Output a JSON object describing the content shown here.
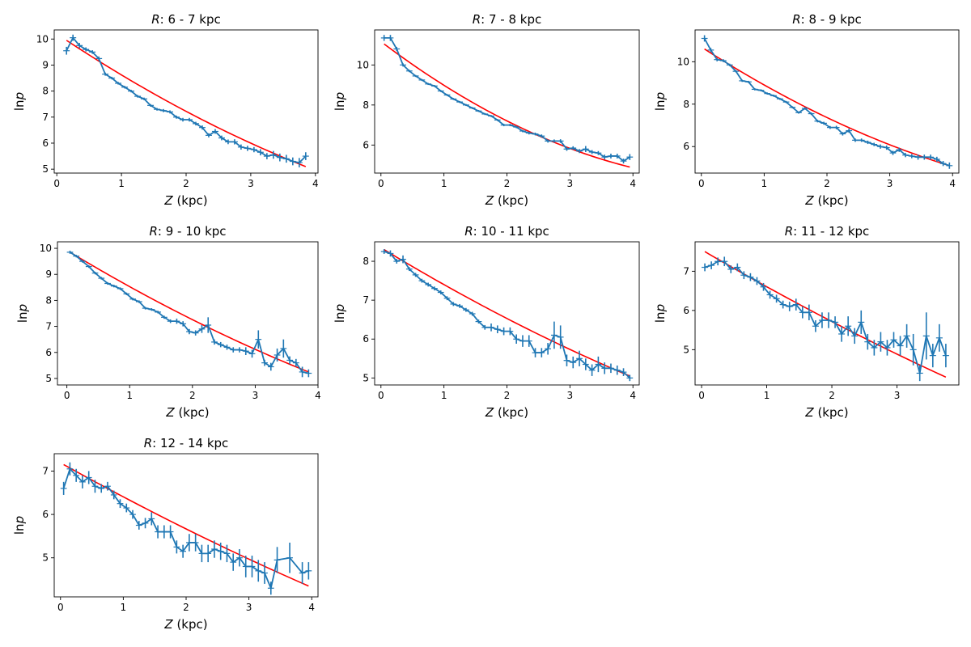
{
  "chart_data": [
    {
      "type": "line",
      "title_prefix": "R",
      "title_rest": ": 6 - 7 kpc",
      "xlabel_var": "Z",
      "xlabel_unit": " (kpc)",
      "ylabel_pre": "ln",
      "ylabel_var": "p",
      "xlim": [
        -0.04,
        4.04
      ],
      "ylim": [
        4.85,
        10.35
      ],
      "xticks": [
        0,
        1,
        2,
        3,
        4
      ],
      "yticks": [
        5,
        6,
        7,
        8,
        9,
        10
      ],
      "colors": {
        "data": "#1f77b4",
        "fit": "#ff0000"
      },
      "data": {
        "x": [
          0.15,
          0.25,
          0.35,
          0.45,
          0.55,
          0.65,
          0.75,
          0.85,
          0.95,
          1.05,
          1.15,
          1.25,
          1.35,
          1.45,
          1.55,
          1.65,
          1.75,
          1.85,
          1.95,
          2.05,
          2.15,
          2.25,
          2.35,
          2.45,
          2.55,
          2.65,
          2.75,
          2.85,
          2.95,
          3.05,
          3.15,
          3.25,
          3.35,
          3.45,
          3.55,
          3.65,
          3.75,
          3.85
        ],
        "y": [
          9.55,
          10.05,
          9.75,
          9.6,
          9.5,
          9.25,
          8.65,
          8.5,
          8.3,
          8.15,
          8.0,
          7.8,
          7.7,
          7.45,
          7.3,
          7.25,
          7.2,
          7.0,
          6.9,
          6.9,
          6.75,
          6.6,
          6.3,
          6.45,
          6.2,
          6.05,
          6.05,
          5.85,
          5.8,
          5.75,
          5.65,
          5.5,
          5.55,
          5.45,
          5.4,
          5.3,
          5.25,
          5.5
        ],
        "yerr": [
          0.15,
          0.12,
          0.1,
          0.08,
          0.07,
          0.08,
          0.06,
          0.05,
          0.05,
          0.05,
          0.05,
          0.05,
          0.05,
          0.05,
          0.05,
          0.06,
          0.06,
          0.06,
          0.07,
          0.07,
          0.07,
          0.08,
          0.08,
          0.09,
          0.09,
          0.09,
          0.1,
          0.1,
          0.1,
          0.1,
          0.12,
          0.12,
          0.15,
          0.15,
          0.15,
          0.15,
          0.18,
          0.15
        ]
      },
      "fit": {
        "x": [
          0.15,
          3.85
        ],
        "y": [
          9.95,
          5.1
        ],
        "curvature": 0.25
      }
    },
    {
      "type": "line",
      "title_prefix": "R",
      "title_rest": ": 7 - 8 kpc",
      "xlabel_var": "Z",
      "xlabel_unit": " (kpc)",
      "ylabel_pre": "ln",
      "ylabel_var": "p",
      "xlim": [
        -0.1,
        4.1
      ],
      "ylim": [
        4.6,
        11.75
      ],
      "xticks": [
        0,
        1,
        2,
        3,
        4
      ],
      "yticks": [
        6,
        8,
        10
      ],
      "colors": {
        "data": "#1f77b4",
        "fit": "#ff0000"
      },
      "data": {
        "x": [
          0.05,
          0.15,
          0.25,
          0.35,
          0.45,
          0.55,
          0.65,
          0.75,
          0.85,
          0.95,
          1.05,
          1.15,
          1.25,
          1.35,
          1.45,
          1.55,
          1.65,
          1.75,
          1.85,
          1.95,
          2.05,
          2.15,
          2.25,
          2.35,
          2.45,
          2.55,
          2.65,
          2.75,
          2.85,
          2.95,
          3.05,
          3.15,
          3.25,
          3.35,
          3.45,
          3.55,
          3.65,
          3.75,
          3.85,
          3.95
        ],
        "y": [
          11.35,
          11.35,
          10.8,
          10.0,
          9.7,
          9.45,
          9.25,
          9.05,
          8.95,
          8.7,
          8.5,
          8.3,
          8.15,
          8.0,
          7.85,
          7.7,
          7.55,
          7.45,
          7.25,
          7.0,
          7.0,
          6.9,
          6.7,
          6.6,
          6.55,
          6.45,
          6.2,
          6.2,
          6.2,
          5.8,
          5.85,
          5.7,
          5.8,
          5.65,
          5.6,
          5.4,
          5.45,
          5.45,
          5.2,
          5.4
        ],
        "yerr": [
          0.15,
          0.15,
          0.1,
          0.08,
          0.06,
          0.05,
          0.05,
          0.05,
          0.05,
          0.05,
          0.05,
          0.05,
          0.05,
          0.05,
          0.05,
          0.05,
          0.05,
          0.05,
          0.05,
          0.06,
          0.06,
          0.06,
          0.06,
          0.07,
          0.07,
          0.08,
          0.08,
          0.08,
          0.09,
          0.09,
          0.09,
          0.1,
          0.15,
          0.1,
          0.1,
          0.12,
          0.12,
          0.12,
          0.12,
          0.15
        ]
      },
      "fit": {
        "x": [
          0.05,
          3.95
        ],
        "y": [
          11.05,
          4.9
        ],
        "curvature": 0.5
      }
    },
    {
      "type": "line",
      "title_prefix": "R",
      "title_rest": ": 8 - 9 kpc",
      "xlabel_var": "Z",
      "xlabel_unit": " (kpc)",
      "ylabel_pre": "ln",
      "ylabel_var": "p",
      "xlim": [
        -0.1,
        4.1
      ],
      "ylim": [
        4.75,
        11.5
      ],
      "xticks": [
        0,
        1,
        2,
        3,
        4
      ],
      "yticks": [
        6,
        8,
        10
      ],
      "colors": {
        "data": "#1f77b4",
        "fit": "#ff0000"
      },
      "data": {
        "x": [
          0.05,
          0.15,
          0.25,
          0.35,
          0.45,
          0.55,
          0.65,
          0.75,
          0.85,
          0.95,
          1.05,
          1.15,
          1.25,
          1.35,
          1.45,
          1.55,
          1.65,
          1.75,
          1.85,
          1.95,
          2.05,
          2.15,
          2.25,
          2.35,
          2.45,
          2.55,
          2.65,
          2.75,
          2.85,
          2.95,
          3.05,
          3.15,
          3.25,
          3.35,
          3.45,
          3.55,
          3.65,
          3.75,
          3.85,
          3.95
        ],
        "y": [
          11.1,
          10.55,
          10.1,
          10.05,
          9.85,
          9.55,
          9.1,
          9.05,
          8.7,
          8.65,
          8.5,
          8.4,
          8.25,
          8.1,
          7.85,
          7.6,
          7.8,
          7.55,
          7.2,
          7.1,
          6.9,
          6.9,
          6.6,
          6.75,
          6.3,
          6.3,
          6.2,
          6.1,
          6.0,
          5.95,
          5.7,
          5.85,
          5.6,
          5.55,
          5.5,
          5.5,
          5.5,
          5.4,
          5.2,
          5.1
        ],
        "yerr": [
          0.15,
          0.1,
          0.08,
          0.07,
          0.06,
          0.05,
          0.05,
          0.05,
          0.05,
          0.05,
          0.05,
          0.05,
          0.05,
          0.05,
          0.05,
          0.05,
          0.06,
          0.06,
          0.06,
          0.07,
          0.07,
          0.08,
          0.08,
          0.1,
          0.08,
          0.08,
          0.08,
          0.08,
          0.1,
          0.1,
          0.1,
          0.1,
          0.1,
          0.1,
          0.12,
          0.12,
          0.12,
          0.12,
          0.12,
          0.15
        ]
      },
      "fit": {
        "x": [
          0.05,
          3.95
        ],
        "y": [
          10.6,
          5.1
        ],
        "curvature": 0.35
      }
    },
    {
      "type": "line",
      "title_prefix": "R",
      "title_rest": ": 9 - 10 kpc",
      "xlabel_var": "Z",
      "xlabel_unit": " (kpc)",
      "ylabel_pre": "ln",
      "ylabel_var": "p",
      "xlim": [
        -0.15,
        4.0
      ],
      "ylim": [
        4.75,
        10.25
      ],
      "xticks": [
        0,
        1,
        2,
        3,
        4
      ],
      "yticks": [
        5,
        6,
        7,
        8,
        9,
        10
      ],
      "colors": {
        "data": "#1f77b4",
        "fit": "#ff0000"
      },
      "data": {
        "x": [
          0.05,
          0.15,
          0.25,
          0.35,
          0.45,
          0.55,
          0.65,
          0.75,
          0.85,
          0.95,
          1.05,
          1.15,
          1.25,
          1.35,
          1.45,
          1.55,
          1.65,
          1.75,
          1.85,
          1.95,
          2.05,
          2.15,
          2.25,
          2.35,
          2.45,
          2.55,
          2.65,
          2.75,
          2.85,
          2.95,
          3.05,
          3.15,
          3.25,
          3.35,
          3.45,
          3.55,
          3.65,
          3.75,
          3.85
        ],
        "y": [
          9.85,
          9.7,
          9.5,
          9.3,
          9.05,
          8.85,
          8.65,
          8.55,
          8.45,
          8.25,
          8.05,
          7.95,
          7.7,
          7.65,
          7.55,
          7.35,
          7.2,
          7.2,
          7.1,
          6.8,
          6.75,
          6.9,
          7.05,
          6.4,
          6.3,
          6.2,
          6.1,
          6.1,
          6.05,
          5.95,
          6.5,
          5.6,
          5.45,
          5.9,
          6.15,
          5.7,
          5.6,
          5.25,
          5.2
        ],
        "yerr": [
          0.06,
          0.05,
          0.05,
          0.05,
          0.05,
          0.05,
          0.05,
          0.05,
          0.05,
          0.05,
          0.05,
          0.05,
          0.05,
          0.05,
          0.05,
          0.06,
          0.07,
          0.1,
          0.1,
          0.1,
          0.1,
          0.15,
          0.3,
          0.1,
          0.1,
          0.1,
          0.1,
          0.1,
          0.15,
          0.15,
          0.35,
          0.12,
          0.15,
          0.25,
          0.35,
          0.15,
          0.15,
          0.2,
          0.15
        ]
      },
      "fit": {
        "x": [
          0.05,
          3.85
        ],
        "y": [
          9.85,
          5.25
        ],
        "curvature": 0.2
      }
    },
    {
      "type": "line",
      "title_prefix": "R",
      "title_rest": ": 10 - 11 kpc",
      "xlabel_var": "Z",
      "xlabel_unit": " (kpc)",
      "ylabel_pre": "ln",
      "ylabel_var": "p",
      "xlim": [
        -0.1,
        4.1
      ],
      "ylim": [
        4.82,
        8.5
      ],
      "xticks": [
        0,
        1,
        2,
        3,
        4
      ],
      "yticks": [
        5,
        6,
        7,
        8
      ],
      "colors": {
        "data": "#1f77b4",
        "fit": "#ff0000"
      },
      "data": {
        "x": [
          0.05,
          0.15,
          0.25,
          0.35,
          0.45,
          0.55,
          0.65,
          0.75,
          0.85,
          0.95,
          1.05,
          1.15,
          1.25,
          1.35,
          1.45,
          1.55,
          1.65,
          1.75,
          1.85,
          1.95,
          2.05,
          2.15,
          2.25,
          2.35,
          2.45,
          2.55,
          2.65,
          2.75,
          2.85,
          2.95,
          3.05,
          3.15,
          3.25,
          3.35,
          3.45,
          3.55,
          3.65,
          3.75,
          3.85,
          3.95
        ],
        "y": [
          8.25,
          8.2,
          8.0,
          8.05,
          7.8,
          7.65,
          7.5,
          7.4,
          7.3,
          7.2,
          7.05,
          6.9,
          6.85,
          6.75,
          6.65,
          6.45,
          6.3,
          6.3,
          6.25,
          6.2,
          6.2,
          6.0,
          5.95,
          5.95,
          5.65,
          5.65,
          5.75,
          6.1,
          6.05,
          5.45,
          5.4,
          5.5,
          5.35,
          5.2,
          5.35,
          5.25,
          5.25,
          5.2,
          5.15,
          5.0
        ],
        "yerr": [
          0.06,
          0.08,
          0.06,
          0.1,
          0.05,
          0.05,
          0.05,
          0.05,
          0.05,
          0.05,
          0.05,
          0.05,
          0.05,
          0.05,
          0.05,
          0.05,
          0.06,
          0.1,
          0.1,
          0.1,
          0.1,
          0.12,
          0.15,
          0.15,
          0.12,
          0.12,
          0.15,
          0.35,
          0.3,
          0.15,
          0.15,
          0.2,
          0.15,
          0.15,
          0.2,
          0.15,
          0.12,
          0.12,
          0.1,
          0.08
        ]
      },
      "fit": {
        "x": [
          0.05,
          3.95
        ],
        "y": [
          8.3,
          5.05
        ],
        "curvature": 0.18
      }
    },
    {
      "type": "line",
      "title_prefix": "R",
      "title_rest": ": 11 - 12 kpc",
      "xlabel_var": "Z",
      "xlabel_unit": " (kpc)",
      "ylabel_pre": "ln",
      "ylabel_var": "p",
      "xlim": [
        -0.1,
        3.95
      ],
      "ylim": [
        4.1,
        7.75
      ],
      "xticks": [
        0,
        1,
        2,
        3
      ],
      "yticks": [
        5,
        6,
        7
      ],
      "colors": {
        "data": "#1f77b4",
        "fit": "#ff0000"
      },
      "data": {
        "x": [
          0.05,
          0.15,
          0.25,
          0.35,
          0.45,
          0.55,
          0.65,
          0.75,
          0.85,
          0.95,
          1.05,
          1.15,
          1.25,
          1.35,
          1.45,
          1.55,
          1.65,
          1.75,
          1.85,
          1.95,
          2.05,
          2.15,
          2.25,
          2.35,
          2.45,
          2.55,
          2.65,
          2.75,
          2.85,
          2.95,
          3.05,
          3.15,
          3.25,
          3.35,
          3.45,
          3.55,
          3.65,
          3.75
        ],
        "y": [
          7.1,
          7.15,
          7.25,
          7.25,
          7.05,
          7.1,
          6.9,
          6.85,
          6.75,
          6.6,
          6.4,
          6.3,
          6.15,
          6.1,
          6.15,
          5.95,
          5.95,
          5.6,
          5.75,
          5.75,
          5.7,
          5.4,
          5.6,
          5.35,
          5.7,
          5.2,
          5.05,
          5.2,
          5.05,
          5.25,
          5.1,
          5.35,
          5.0,
          4.4,
          5.35,
          4.85,
          5.3,
          4.85
        ],
        "yerr": [
          0.1,
          0.1,
          0.1,
          0.12,
          0.1,
          0.1,
          0.1,
          0.1,
          0.1,
          0.1,
          0.1,
          0.1,
          0.1,
          0.12,
          0.15,
          0.15,
          0.2,
          0.15,
          0.2,
          0.2,
          0.15,
          0.2,
          0.25,
          0.2,
          0.3,
          0.2,
          0.2,
          0.25,
          0.2,
          0.2,
          0.25,
          0.3,
          0.4,
          0.2,
          0.6,
          0.3,
          0.35,
          0.3
        ]
      },
      "fit": {
        "x": [
          0.05,
          3.75
        ],
        "y": [
          7.5,
          4.3
        ],
        "curvature": 0.12
      }
    },
    {
      "type": "line",
      "title_prefix": "R",
      "title_rest": ": 12 - 14 kpc",
      "xlabel_var": "Z",
      "xlabel_unit": " (kpc)",
      "ylabel_pre": "ln",
      "ylabel_var": "p",
      "xlim": [
        -0.1,
        4.1
      ],
      "ylim": [
        4.1,
        7.4
      ],
      "xticks": [
        0,
        1,
        2,
        3,
        4
      ],
      "yticks": [
        5,
        6,
        7
      ],
      "colors": {
        "data": "#1f77b4",
        "fit": "#ff0000"
      },
      "data": {
        "x": [
          0.05,
          0.15,
          0.25,
          0.35,
          0.45,
          0.55,
          0.65,
          0.75,
          0.85,
          0.95,
          1.05,
          1.15,
          1.25,
          1.35,
          1.45,
          1.55,
          1.65,
          1.75,
          1.85,
          1.95,
          2.05,
          2.15,
          2.25,
          2.35,
          2.45,
          2.55,
          2.65,
          2.75,
          2.85,
          2.95,
          3.05,
          3.15,
          3.25,
          3.35,
          3.45,
          3.65,
          3.85,
          3.95
        ],
        "y": [
          6.6,
          7.05,
          6.9,
          6.75,
          6.85,
          6.65,
          6.6,
          6.65,
          6.45,
          6.25,
          6.15,
          6.0,
          5.75,
          5.8,
          5.9,
          5.6,
          5.6,
          5.6,
          5.25,
          5.15,
          5.35,
          5.35,
          5.1,
          5.1,
          5.2,
          5.15,
          5.1,
          4.9,
          5.0,
          4.8,
          4.8,
          4.7,
          4.65,
          4.3,
          4.95,
          5.0,
          4.65,
          4.7
        ],
        "yerr": [
          0.15,
          0.15,
          0.15,
          0.15,
          0.15,
          0.15,
          0.1,
          0.1,
          0.1,
          0.1,
          0.1,
          0.1,
          0.1,
          0.12,
          0.15,
          0.15,
          0.15,
          0.15,
          0.15,
          0.15,
          0.2,
          0.2,
          0.2,
          0.2,
          0.2,
          0.2,
          0.2,
          0.2,
          0.2,
          0.25,
          0.25,
          0.25,
          0.25,
          0.15,
          0.3,
          0.35,
          0.25,
          0.2
        ]
      },
      "fit": {
        "x": [
          0.05,
          3.95
        ],
        "y": [
          7.15,
          4.35
        ],
        "curvature": 0.12
      }
    }
  ]
}
